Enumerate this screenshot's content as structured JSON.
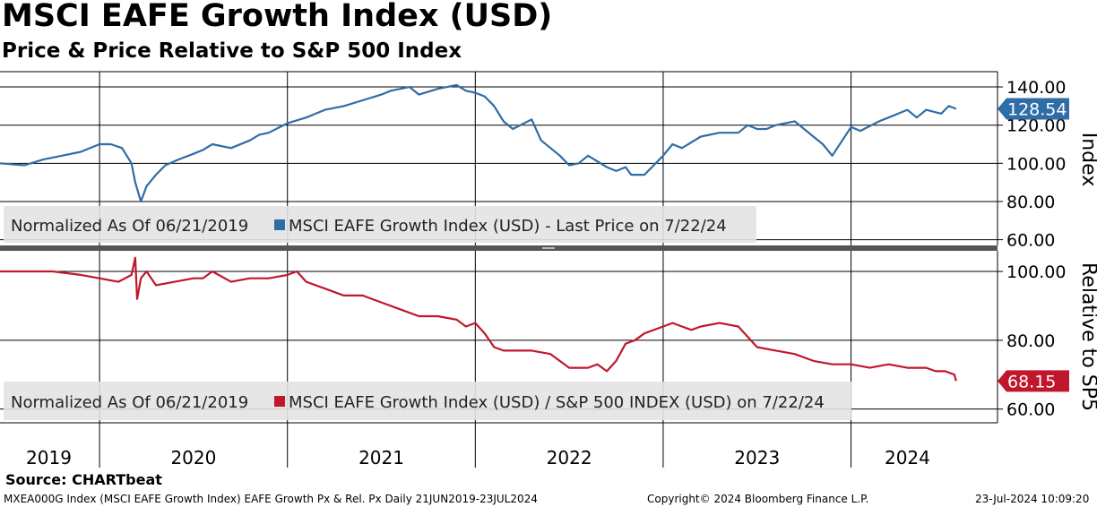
{
  "header": {
    "title": "MSCI EAFE Growth Index (USD)",
    "subtitle": "Price & Price Relative to S&P 500 Index"
  },
  "footer": {
    "source": "Source: CHARTbeat",
    "info": "MXEA000G Index (MSCI EAFE Growth Index) EAFE Growth Px & Rel. Px  Daily 21JUN2019-23JUL2024",
    "copyright": "Copyright© 2024 Bloomberg Finance L.P.",
    "timestamp": "23-Jul-2024 10:09:20"
  },
  "colors": {
    "price": "#2f6da6",
    "relative": "#c0172c"
  },
  "chart_data": [
    {
      "type": "line",
      "panel": "top",
      "ylabel": "Index",
      "ylim": [
        57,
        148
      ],
      "yticks": [
        "140.00",
        "120.00",
        "100.00",
        "80.00",
        "60.00"
      ],
      "ytick_values": [
        140,
        120,
        100,
        80,
        60
      ],
      "legend": "Normalized As Of 06/21/2019",
      "series_label": "MSCI EAFE Growth Index (USD) - Last Price on 7/22/24",
      "last_value_label": "128.54",
      "last_value": 128.54,
      "series": [
        {
          "name": "MSCI EAFE Growth Index (USD) - Last Price",
          "x": [
            2019.47,
            2019.6,
            2019.7,
            2019.8,
            2019.9,
            2020.0,
            2020.06,
            2020.12,
            2020.17,
            2020.19,
            2020.22,
            2020.25,
            2020.3,
            2020.35,
            2020.42,
            2020.5,
            2020.55,
            2020.6,
            2020.7,
            2020.8,
            2020.85,
            2020.9,
            2021.0,
            2021.1,
            2021.2,
            2021.3,
            2021.4,
            2021.5,
            2021.55,
            2021.65,
            2021.7,
            2021.8,
            2021.9,
            2021.95,
            2022.0,
            2022.05,
            2022.1,
            2022.15,
            2022.2,
            2022.3,
            2022.35,
            2022.45,
            2022.5,
            2022.55,
            2022.6,
            2022.7,
            2022.75,
            2022.8,
            2022.83,
            2022.9,
            2023.0,
            2023.05,
            2023.1,
            2023.2,
            2023.3,
            2023.4,
            2023.45,
            2023.5,
            2023.55,
            2023.6,
            2023.7,
            2023.8,
            2023.85,
            2023.9,
            2024.0,
            2024.05,
            2024.15,
            2024.2,
            2024.3,
            2024.35,
            2024.4,
            2024.48,
            2024.52,
            2024.56
          ],
          "values": [
            100,
            99,
            102,
            104,
            106,
            110,
            110,
            108,
            100,
            90,
            80,
            88,
            94,
            99,
            102,
            105,
            107,
            110,
            108,
            112,
            115,
            116,
            121,
            124,
            128,
            130,
            133,
            136,
            138,
            140,
            136,
            139,
            141,
            138,
            137,
            135,
            130,
            122,
            118,
            123,
            112,
            104,
            99,
            100,
            104,
            98,
            96,
            98,
            94,
            94,
            104,
            110,
            108,
            114,
            116,
            116,
            120,
            118,
            118,
            120,
            122,
            114,
            110,
            104,
            119,
            117,
            122,
            124,
            128,
            124,
            128,
            126,
            130,
            128.54
          ]
        }
      ]
    },
    {
      "type": "line",
      "panel": "bottom",
      "ylabel": "Relative to SP5",
      "ylim": [
        56,
        106
      ],
      "yticks": [
        "100.00",
        "80.00",
        "60.00"
      ],
      "ytick_values": [
        100,
        80,
        60
      ],
      "legend": "Normalized As Of 06/21/2019",
      "series_label": "MSCI EAFE Growth Index (USD) / S&P 500 INDEX (USD) on 7/22/24",
      "last_value_label": "68.15",
      "last_value": 68.15,
      "xlabels": [
        "2019",
        "2020",
        "2021",
        "2022",
        "2023",
        "2024"
      ],
      "xlabel_positions": [
        2019.73,
        2020.5,
        2021.5,
        2022.5,
        2023.5,
        2024.3
      ],
      "year_boundaries": [
        2020.0,
        2021.0,
        2022.0,
        2023.0,
        2024.0
      ],
      "xlim": [
        2019.47,
        2024.67
      ],
      "series": [
        {
          "name": "MSCI EAFE Growth Index (USD) / S&P 500 INDEX (USD)",
          "x": [
            2019.47,
            2019.6,
            2019.75,
            2019.9,
            2020.0,
            2020.1,
            2020.17,
            2020.19,
            2020.2,
            2020.22,
            2020.25,
            2020.3,
            2020.4,
            2020.5,
            2020.55,
            2020.6,
            2020.7,
            2020.8,
            2020.9,
            2021.0,
            2021.05,
            2021.1,
            2021.2,
            2021.3,
            2021.4,
            2021.5,
            2021.6,
            2021.7,
            2021.8,
            2021.9,
            2021.95,
            2022.0,
            2022.05,
            2022.1,
            2022.15,
            2022.25,
            2022.3,
            2022.4,
            2022.5,
            2022.6,
            2022.65,
            2022.7,
            2022.75,
            2022.8,
            2022.85,
            2022.9,
            2023.0,
            2023.05,
            2023.1,
            2023.15,
            2023.2,
            2023.3,
            2023.4,
            2023.5,
            2023.6,
            2023.7,
            2023.8,
            2023.9,
            2024.0,
            2024.1,
            2024.2,
            2024.3,
            2024.4,
            2024.45,
            2024.5,
            2024.55,
            2024.56
          ],
          "values": [
            100,
            100,
            100,
            99,
            98,
            97,
            99,
            104,
            92,
            98,
            100,
            96,
            97,
            98,
            98,
            100,
            97,
            98,
            98,
            99,
            100,
            97,
            95,
            93,
            93,
            91,
            89,
            87,
            87,
            86,
            84,
            85,
            82,
            78,
            77,
            77,
            77,
            76,
            72,
            72,
            73,
            71,
            74,
            79,
            80,
            82,
            84,
            85,
            84,
            83,
            84,
            85,
            84,
            78,
            77,
            76,
            74,
            73,
            73,
            72,
            73,
            72,
            72,
            71,
            71,
            70,
            68.15
          ]
        }
      ]
    }
  ]
}
